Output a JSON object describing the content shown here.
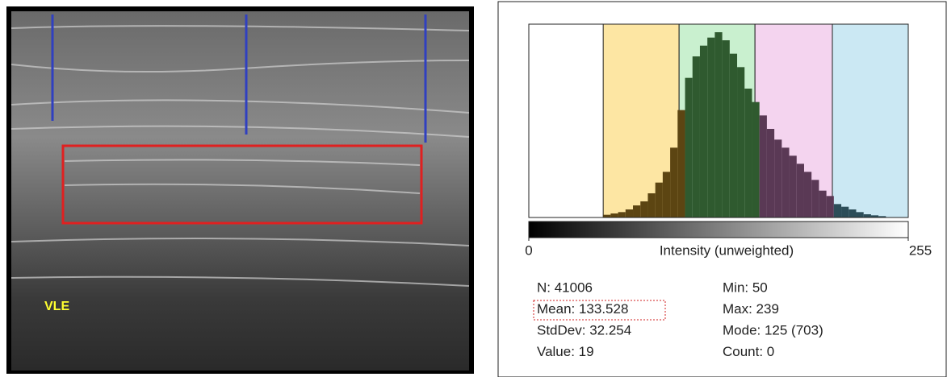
{
  "image": {
    "label": "VLE"
  },
  "chart_data": {
    "type": "histogram",
    "xlabel": "Intensity (unweighted)",
    "xlim": [
      0,
      255
    ],
    "xticks": [
      0,
      255
    ],
    "ylim": [
      0,
      720
    ],
    "bins": [
      50,
      55,
      60,
      65,
      70,
      75,
      80,
      85,
      90,
      95,
      100,
      105,
      110,
      115,
      120,
      125,
      130,
      135,
      140,
      145,
      150,
      155,
      160,
      165,
      170,
      175,
      180,
      185,
      190,
      195,
      200,
      205,
      210,
      215,
      220,
      225,
      230,
      235,
      240
    ],
    "values": [
      10,
      15,
      20,
      30,
      45,
      60,
      90,
      130,
      170,
      260,
      400,
      520,
      600,
      640,
      670,
      690,
      660,
      610,
      560,
      480,
      430,
      380,
      330,
      290,
      260,
      230,
      200,
      170,
      140,
      100,
      80,
      50,
      40,
      30,
      20,
      12,
      8,
      5
    ],
    "bands": [
      {
        "range": [
          50,
          101
        ],
        "color": "#fde6a3",
        "bar_color": "#5c4512"
      },
      {
        "range": [
          101,
          152
        ],
        "color": "#c9f0cf",
        "bar_color": "#2f5a2f"
      },
      {
        "range": [
          152,
          204
        ],
        "color": "#f4d4ef",
        "bar_color": "#5a3955"
      },
      {
        "range": [
          204,
          255
        ],
        "color": "#cbe8f3",
        "bar_color": "#2c4d58"
      }
    ],
    "stats": [
      [
        "N: 41006",
        "Min: 50"
      ],
      [
        "Mean: 133.528",
        "Max: 239"
      ],
      [
        "StdDev: 32.254",
        "Mode: 125 (703)"
      ],
      [
        "Value: 19",
        "Count: 0"
      ]
    ]
  }
}
